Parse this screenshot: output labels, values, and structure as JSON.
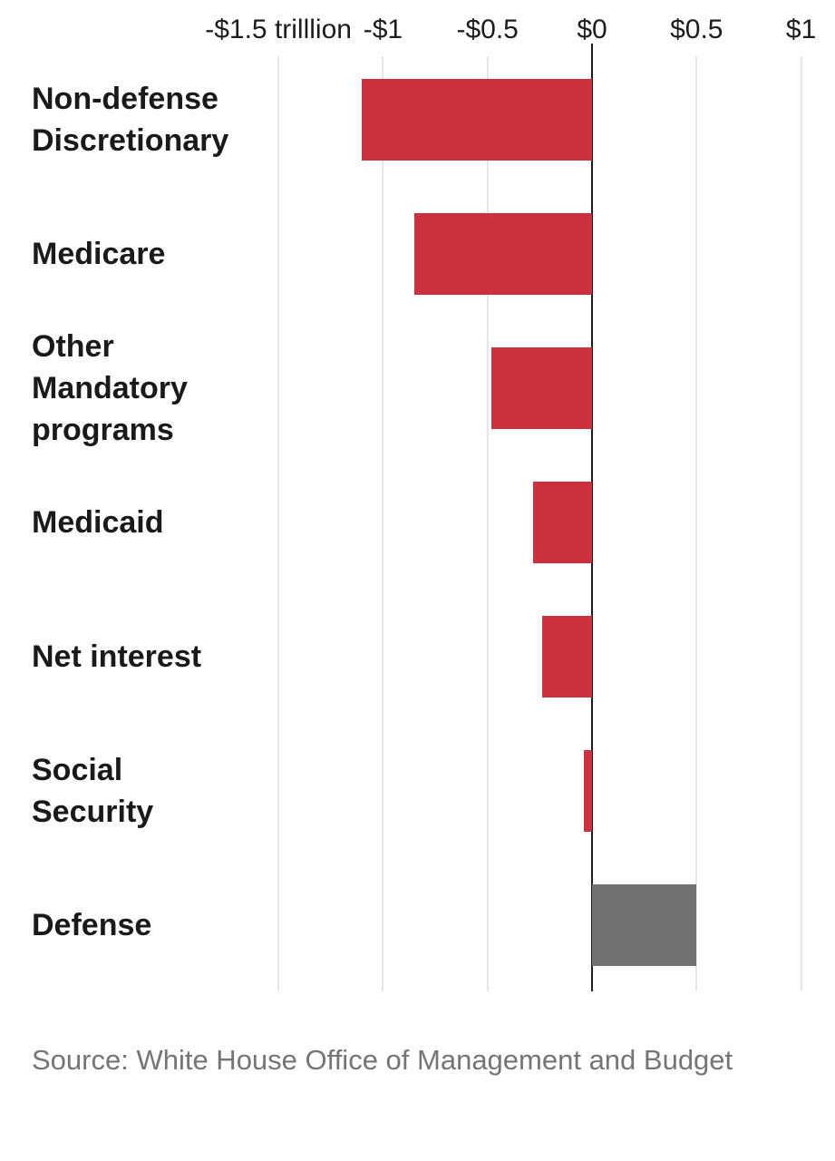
{
  "chart_data": {
    "type": "bar",
    "orientation": "horizontal",
    "unit": "trillions of dollars",
    "categories": [
      "Non-defense Discretionary",
      "Medicare",
      "Other Mandatory programs",
      "Medicaid",
      "Net interest",
      "Social Security",
      "Defense"
    ],
    "category_label_lines": [
      [
        "Non-defense",
        "Discretionary"
      ],
      [
        "Medicare"
      ],
      [
        "Other",
        "Mandatory",
        "programs"
      ],
      [
        "Medicaid"
      ],
      [
        "Net interest"
      ],
      [
        "Social",
        "Security"
      ],
      [
        "Defense"
      ]
    ],
    "values": [
      -1.1,
      -0.85,
      -0.48,
      -0.28,
      -0.24,
      -0.04,
      0.5
    ],
    "x_ticks": [
      {
        "value": -1.5,
        "label": "-$1.5 trilllion"
      },
      {
        "value": -1.0,
        "label": "-$1"
      },
      {
        "value": -0.5,
        "label": "-$0.5"
      },
      {
        "value": 0.0,
        "label": "$0"
      },
      {
        "value": 0.5,
        "label": "$0.5"
      },
      {
        "value": 1.0,
        "label": "$1"
      }
    ],
    "xlim": [
      -1.5,
      1.0
    ],
    "grid": true,
    "legend": "none",
    "title": "",
    "xlabel": "",
    "ylabel": ""
  },
  "colors": {
    "negative_bar": "#cb313f",
    "positive_bar": "#717171",
    "gridline": "#e7e7e7",
    "zero_line": "#1e1e1e",
    "tick_text": "#1c1c1c",
    "category_text": "#1a1a1a",
    "source_text": "#757575"
  },
  "source": {
    "text": "Source: White House Office of Management and Budget"
  }
}
